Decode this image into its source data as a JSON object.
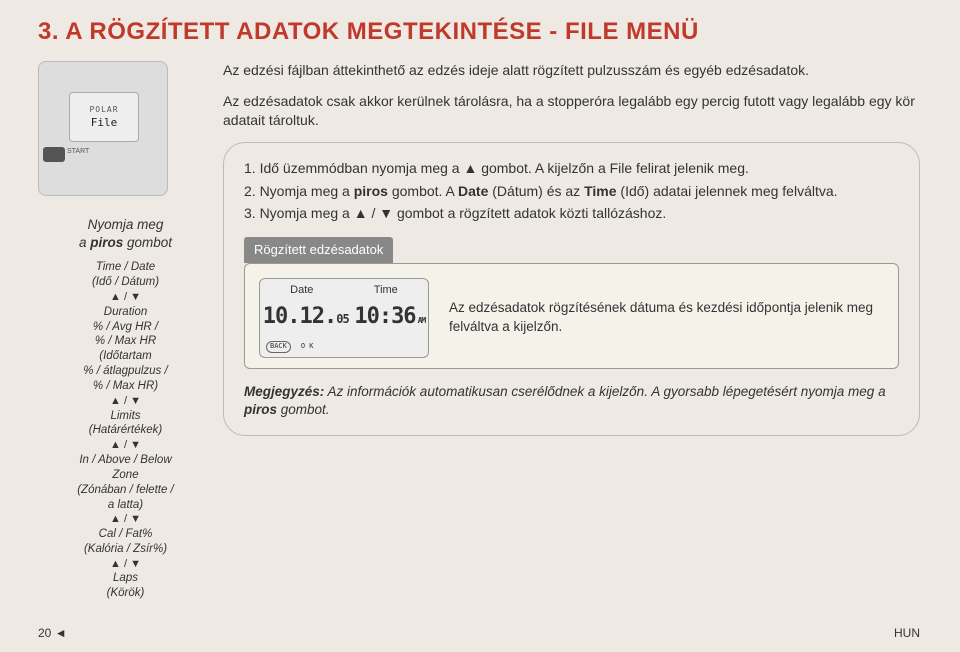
{
  "title": "3.  A RÖGZÍTETT ADATOK MEGTEKINTÉSE - FILE MENÜ",
  "watch": {
    "top": "POLAR",
    "main": "File",
    "btn_lbl": "START"
  },
  "nav": {
    "press_line1": "Nyomja meg",
    "press_line2": "a piros gombot",
    "items": [
      "Time / Date\n(Idő / Dátum)",
      "Duration\n% / Avg HR /\n% / Max HR\n(Időtartam\n% / átlagpulzus /\n% / Max HR)",
      "Limits\n(Határértékek)",
      "In / Above / Below\nZone\n(Zónában / felette /\na latta)",
      "Cal / Fat%\n(Kalória / Zsír%)",
      "Laps\n(Körök)"
    ],
    "updown": "▲ / ▼"
  },
  "intro": {
    "p1": "Az edzési fájlban áttekinthető az edzés ideje alatt rögzített pulzusszám és egyéb edzésadatok.",
    "p2": "Az edzésadatok csak akkor kerülnek tárolásra, ha a stopperóra legalább egy percig futott vagy legalább egy kör adatait tároltuk."
  },
  "instr": {
    "i1a": "1. Idő üzemmódban nyomja meg a ▲ gombot. A kijelzőn a File felirat jelenik meg.",
    "i2a": "2. Nyomja meg a ",
    "i2b": "piros",
    "i2c": " gombot. A ",
    "i2d": "Date",
    "i2e": " (Dátum) és az ",
    "i2f": "Time",
    "i2g": " (Idő) adatai jelennek meg felváltva.",
    "i3": "3. Nyomja meg a ▲ / ▼ gombot a rögzített adatok közti tallózáshoz."
  },
  "subbox": {
    "title": "Rögzített edzésadatok",
    "lcd": {
      "h1": "Date",
      "h2": "Time",
      "v1a": "10.12.",
      "v1b": "05",
      "v2": "10:36",
      "am": "AM",
      "back": "BACK",
      "ok": "O K"
    },
    "right": "Az edzésadatok rögzítésének dátuma és kezdési időpontja jelenik meg felváltva a kijelzőn."
  },
  "note": {
    "a": "Megjegyzés:",
    "b": " Az információk automatikusan cserélődnek a kijelzőn. A gyorsabb lépegetésért nyomja meg a ",
    "c": "piros",
    "d": " gombot."
  },
  "footer": {
    "page": "20",
    "lang": "HUN"
  }
}
